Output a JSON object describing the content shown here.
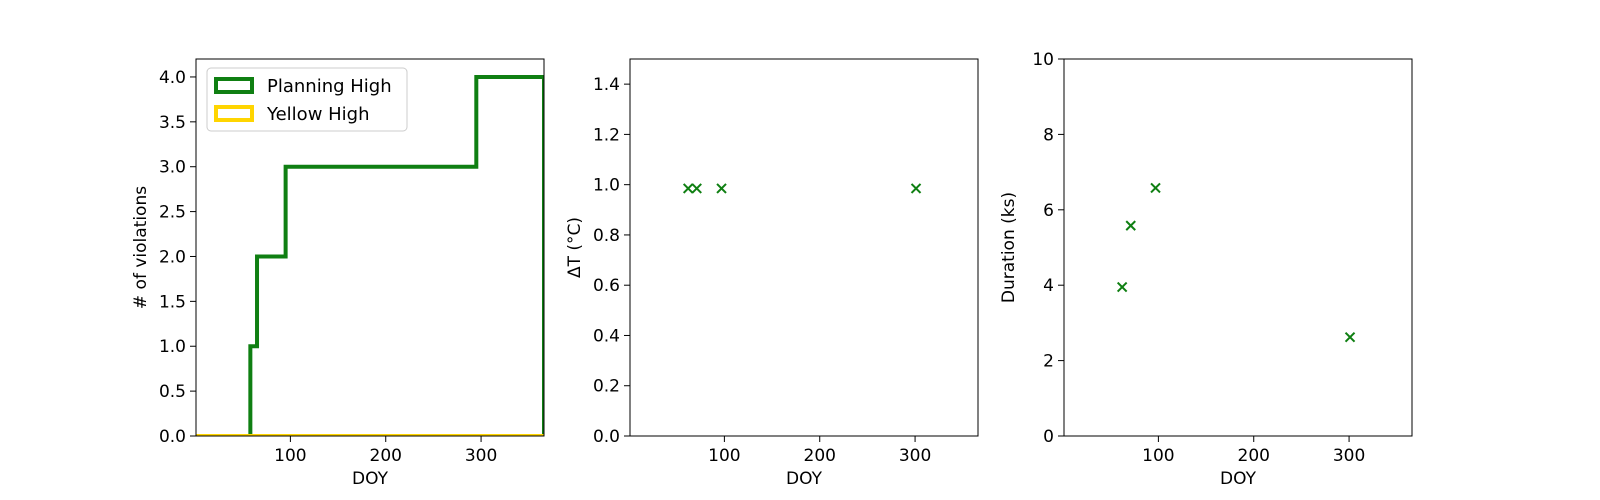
{
  "colors": {
    "planning": "#0f7f12",
    "yellow": "#ffd500",
    "marker": "#0f7f12",
    "axis": "#000000"
  },
  "chart_data": [
    {
      "type": "line",
      "step": true,
      "xlabel": "DOY",
      "ylabel": "# of violations",
      "xlim": [
        1,
        366
      ],
      "ylim": [
        0,
        4.2
      ],
      "xticks": [
        100,
        200,
        300
      ],
      "yticks": [
        0.0,
        0.5,
        1.0,
        1.5,
        2.0,
        2.5,
        3.0,
        3.5,
        4.0
      ],
      "legend": {
        "placement": "upper-left"
      },
      "series": [
        {
          "name": "Planning High",
          "color": "#0f7f12",
          "x": [
            58,
            58,
            65,
            65,
            95,
            95,
            295,
            295,
            366,
            366
          ],
          "y": [
            0,
            1,
            1,
            2,
            2,
            3,
            3,
            4,
            4,
            0
          ]
        },
        {
          "name": "Yellow High",
          "color": "#ffd500",
          "x": [
            1,
            366
          ],
          "y": [
            0,
            0
          ]
        }
      ]
    },
    {
      "type": "scatter",
      "marker": "x",
      "xlabel": "DOY",
      "ylabel": "ΔT (°C)",
      "xlim": [
        1,
        366
      ],
      "ylim": [
        0,
        1.5
      ],
      "xticks": [
        100,
        200,
        300
      ],
      "yticks": [
        0.0,
        0.2,
        0.4,
        0.6,
        0.8,
        1.0,
        1.2,
        1.4
      ],
      "series": [
        {
          "x": [
            62,
            71,
            97,
            301
          ],
          "y": [
            0.985,
            0.985,
            0.985,
            0.985
          ]
        }
      ]
    },
    {
      "type": "scatter",
      "marker": "x",
      "xlabel": "DOY",
      "ylabel": "Duration (ks)",
      "xlim": [
        1,
        366
      ],
      "ylim": [
        0,
        10
      ],
      "xticks": [
        100,
        200,
        300
      ],
      "yticks": [
        0,
        2,
        4,
        6,
        8,
        10
      ],
      "series": [
        {
          "x": [
            62,
            71,
            97,
            301
          ],
          "y": [
            3.95,
            5.58,
            6.58,
            2.62
          ]
        }
      ]
    }
  ]
}
